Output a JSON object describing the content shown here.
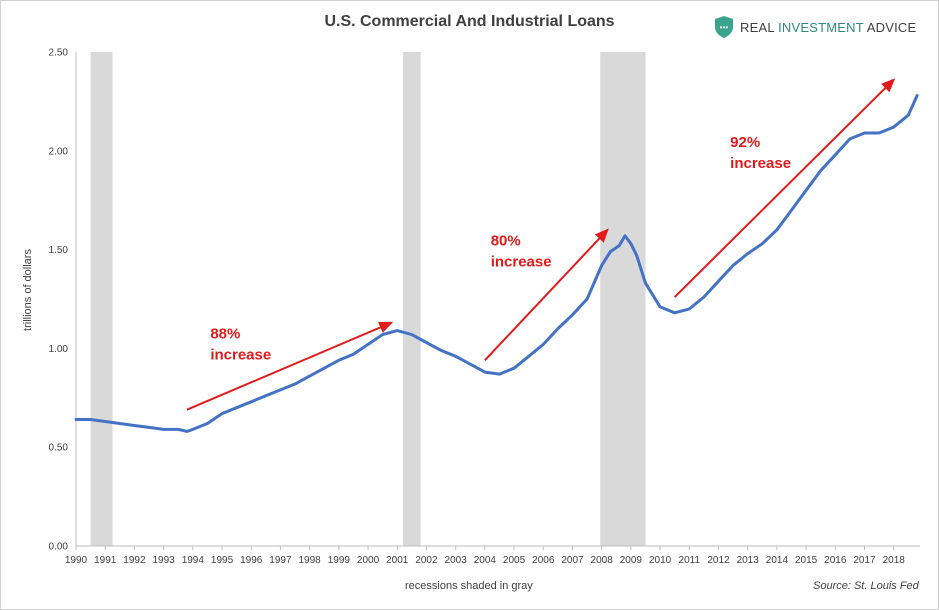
{
  "title": "U.S. Commercial And Industrial Loans",
  "brand": {
    "name_part1": "REAL",
    "name_part2": "INVESTMENT",
    "name_part3": "ADVICE",
    "logo_icon": "shield-icon",
    "logo_color": "#3aa58d"
  },
  "chart_data": {
    "type": "line",
    "title": "U.S. Commercial And Industrial Loans",
    "xlabel": "recessions shaded in gray",
    "ylabel": "trillions of dollars",
    "source": "Source: St. Louis Fed",
    "xlim": [
      1990,
      2018.9
    ],
    "ylim": [
      0,
      2.5
    ],
    "yticks": [
      "0.00",
      "0.50",
      "1.00",
      "1.50",
      "2.00",
      "2.50"
    ],
    "xticks": [
      "1990",
      "1991",
      "1992",
      "1993",
      "1994",
      "1995",
      "1996",
      "1997",
      "1998",
      "1999",
      "2000",
      "2001",
      "2002",
      "2003",
      "2004",
      "2005",
      "2006",
      "2007",
      "2008",
      "2009",
      "2010",
      "2011",
      "2012",
      "2013",
      "2014",
      "2015",
      "2016",
      "2017",
      "2018"
    ],
    "grid": false,
    "line_color": "#4472c4",
    "recession_color": "#d9d9d9",
    "recessions": [
      [
        1990.5,
        1991.25
      ],
      [
        2001.2,
        2001.8
      ],
      [
        2007.95,
        2009.5
      ]
    ],
    "series": [
      {
        "x": [
          1990,
          1990.5,
          1991,
          1991.5,
          1992,
          1992.5,
          1993,
          1993.5,
          1993.8,
          1994,
          1994.5,
          1995,
          1995.5,
          1996,
          1996.5,
          1997,
          1997.5,
          1998,
          1998.5,
          1999,
          1999.5,
          2000,
          2000.5,
          2001,
          2001.5,
          2002,
          2002.5,
          2003,
          2003.5,
          2004,
          2004.5,
          2005,
          2005.5,
          2006,
          2006.5,
          2007,
          2007.5,
          2008,
          2008.3,
          2008.6,
          2008.8,
          2009,
          2009.2,
          2009.5,
          2010,
          2010.5,
          2011,
          2011.5,
          2012,
          2012.5,
          2013,
          2013.5,
          2014,
          2014.5,
          2015,
          2015.5,
          2016,
          2016.5,
          2017,
          2017.5,
          2018,
          2018.5,
          2018.8
        ],
        "y": [
          0.64,
          0.64,
          0.63,
          0.62,
          0.61,
          0.6,
          0.59,
          0.59,
          0.58,
          0.59,
          0.62,
          0.67,
          0.7,
          0.73,
          0.76,
          0.79,
          0.82,
          0.86,
          0.9,
          0.94,
          0.97,
          1.02,
          1.07,
          1.09,
          1.07,
          1.03,
          0.99,
          0.96,
          0.92,
          0.88,
          0.87,
          0.9,
          0.96,
          1.02,
          1.1,
          1.17,
          1.25,
          1.42,
          1.49,
          1.52,
          1.57,
          1.53,
          1.47,
          1.33,
          1.21,
          1.18,
          1.2,
          1.26,
          1.34,
          1.42,
          1.48,
          1.53,
          1.6,
          1.7,
          1.8,
          1.9,
          1.98,
          2.06,
          2.09,
          2.09,
          2.12,
          2.18,
          2.28
        ]
      }
    ],
    "annotations": [
      {
        "label_line1": "88%",
        "label_line2": "increase",
        "label_x": 1994.6,
        "label_y": 1.05,
        "arrow_from": [
          1993.8,
          0.69
        ],
        "arrow_to": [
          2000.8,
          1.13
        ]
      },
      {
        "label_line1": "80%",
        "label_line2": "increase",
        "label_x": 2004.2,
        "label_y": 1.52,
        "arrow_from": [
          2004.0,
          0.94
        ],
        "arrow_to": [
          2008.2,
          1.6
        ]
      },
      {
        "label_line1": "92%",
        "label_line2": "increase",
        "label_x": 2012.4,
        "label_y": 2.02,
        "arrow_from": [
          2010.5,
          1.26
        ],
        "arrow_to": [
          2018.0,
          2.36
        ]
      }
    ]
  }
}
